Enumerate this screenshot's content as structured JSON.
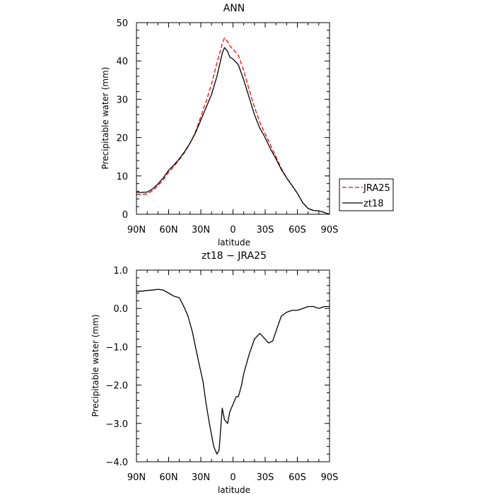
{
  "chart_data": [
    {
      "type": "line",
      "title": "ANN",
      "xlabel": "latitude",
      "ylabel": "Precipitable water  (mm)",
      "x_ticks": [
        "90N",
        "60N",
        "30N",
        "0",
        "30S",
        "60S",
        "90S"
      ],
      "x_tick_values": [
        90,
        60,
        30,
        0,
        -30,
        -60,
        -90
      ],
      "y_ticks": [
        "0",
        "10",
        "20",
        "30",
        "40",
        "50"
      ],
      "y_tick_values": [
        0,
        10,
        20,
        30,
        40,
        50
      ],
      "xlim": [
        90,
        -90
      ],
      "ylim": [
        0,
        50
      ],
      "legend_position": "right",
      "series": [
        {
          "name": "JRA25",
          "color": "#ff0000",
          "dash": "dashed",
          "x": [
            90,
            85,
            80,
            75,
            70,
            65,
            60,
            55,
            50,
            45,
            40,
            35,
            30,
            25,
            20,
            15,
            10,
            8,
            5,
            3,
            0,
            -5,
            -10,
            -15,
            -20,
            -25,
            -30,
            -35,
            -40,
            -45,
            -50,
            -55,
            -60,
            -65,
            -70,
            -75,
            -80,
            -85,
            -90
          ],
          "y": [
            5.2,
            5.2,
            5.3,
            6.2,
            7.5,
            9.0,
            11.0,
            12.5,
            14.3,
            16.2,
            18.5,
            21.5,
            25.5,
            29.5,
            34.0,
            39.5,
            44.5,
            46.0,
            45.0,
            44.0,
            43.0,
            41.5,
            37.5,
            32.5,
            28.0,
            24.0,
            21.0,
            18.0,
            15.0,
            12.0,
            9.5,
            7.5,
            5.5,
            3.0,
            1.5,
            1.0,
            0.9,
            0.5,
            0.0
          ]
        },
        {
          "name": "zt18",
          "color": "#000000",
          "dash": "solid",
          "x": [
            90,
            85,
            80,
            75,
            70,
            65,
            60,
            55,
            50,
            45,
            40,
            35,
            30,
            25,
            20,
            15,
            10,
            8,
            5,
            3,
            0,
            -5,
            -10,
            -15,
            -20,
            -25,
            -30,
            -35,
            -40,
            -45,
            -50,
            -55,
            -60,
            -65,
            -70,
            -75,
            -80,
            -85,
            -90
          ],
          "y": [
            5.7,
            5.7,
            5.8,
            6.6,
            7.9,
            9.5,
            11.5,
            12.9,
            14.5,
            16.4,
            18.6,
            21.2,
            24.6,
            27.9,
            31.3,
            36.0,
            42.0,
            43.5,
            42.5,
            41.0,
            40.5,
            39.0,
            35.0,
            30.5,
            26.0,
            22.5,
            20.0,
            17.0,
            14.5,
            11.7,
            9.5,
            7.5,
            5.5,
            3.0,
            1.5,
            1.0,
            0.9,
            0.5,
            0.0
          ]
        }
      ]
    },
    {
      "type": "line",
      "title": "zt18 − JRA25",
      "xlabel": "latitude",
      "ylabel": "Precipitable water  (mm)",
      "x_ticks": [
        "90N",
        "60N",
        "30N",
        "0",
        "30S",
        "60S",
        "90S"
      ],
      "x_tick_values": [
        90,
        60,
        30,
        0,
        -30,
        -60,
        -90
      ],
      "y_ticks": [
        "1.0",
        "0.0",
        "−1.0",
        "−2.0",
        "−3.0",
        "−4.0"
      ],
      "y_tick_values": [
        1,
        0,
        -1,
        -2,
        -3,
        -4
      ],
      "xlim": [
        90,
        -90
      ],
      "ylim": [
        -4,
        1
      ],
      "series": [
        {
          "name": "",
          "color": "#000000",
          "dash": "solid",
          "x": [
            90,
            85,
            80,
            75,
            70,
            65,
            60,
            55,
            50,
            45,
            42,
            38,
            35,
            32,
            28,
            25,
            22,
            20,
            18,
            15,
            13,
            10,
            8,
            5,
            3,
            0,
            -3,
            -5,
            -8,
            -10,
            -15,
            -20,
            -25,
            -30,
            -33,
            -37,
            -40,
            -45,
            -50,
            -55,
            -60,
            -65,
            -70,
            -75,
            -80,
            -85,
            -90
          ],
          "y": [
            0.45,
            0.45,
            0.47,
            0.48,
            0.5,
            0.48,
            0.4,
            0.32,
            0.28,
            0.0,
            -0.2,
            -0.6,
            -1.0,
            -1.4,
            -1.9,
            -2.5,
            -3.0,
            -3.3,
            -3.6,
            -3.8,
            -3.7,
            -2.6,
            -2.9,
            -3.0,
            -2.7,
            -2.5,
            -2.3,
            -2.3,
            -2.0,
            -1.7,
            -1.2,
            -0.8,
            -0.65,
            -0.8,
            -0.9,
            -0.85,
            -0.6,
            -0.2,
            -0.1,
            -0.05,
            -0.05,
            0.0,
            0.05,
            0.05,
            0.0,
            0.05,
            0.05
          ]
        }
      ]
    }
  ]
}
